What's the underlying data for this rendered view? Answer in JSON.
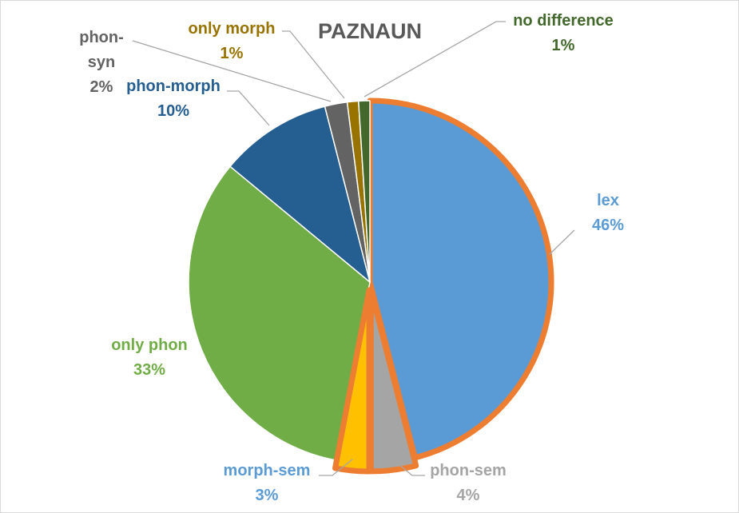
{
  "chart_data": {
    "type": "pie",
    "title": "PAZNAUN",
    "slices": [
      {
        "label": "lex",
        "value": 46,
        "pct_label": "46%",
        "color": "#5B9BD5",
        "exploded": false
      },
      {
        "label": "phon-sem",
        "value": 4,
        "pct_label": "4%",
        "color": "#A5A5A5",
        "exploded": true
      },
      {
        "label": "morph-sem",
        "value": 3,
        "pct_label": "3%",
        "color": "#FFC000",
        "exploded": true
      },
      {
        "label": "only phon",
        "value": 33,
        "pct_label": "33%",
        "color": "#70AD47",
        "exploded": false
      },
      {
        "label": "phon-morph",
        "value": 10,
        "pct_label": "10%",
        "color": "#255E91",
        "exploded": false
      },
      {
        "label": "phon-syn",
        "value": 2,
        "pct_label": "2%",
        "color": "#636363",
        "exploded": false
      },
      {
        "label": "only morph",
        "value": 1,
        "pct_label": "1%",
        "color": "#997300",
        "exploded": false
      },
      {
        "label": "no difference",
        "value": 1,
        "pct_label": "1%",
        "color": "#43682B",
        "exploded": false
      }
    ],
    "highlight_outline_color": "#ED7D31",
    "label_colors": {
      "lex": "#5B9BD5",
      "phon-sem": "#A5A5A5",
      "morph-sem": "#5B9BD5",
      "only phon": "#70AD47",
      "phon-morph": "#255E91",
      "phon-syn": "#636363",
      "only morph": "#997300",
      "no difference": "#43682B"
    },
    "legend": "none"
  }
}
